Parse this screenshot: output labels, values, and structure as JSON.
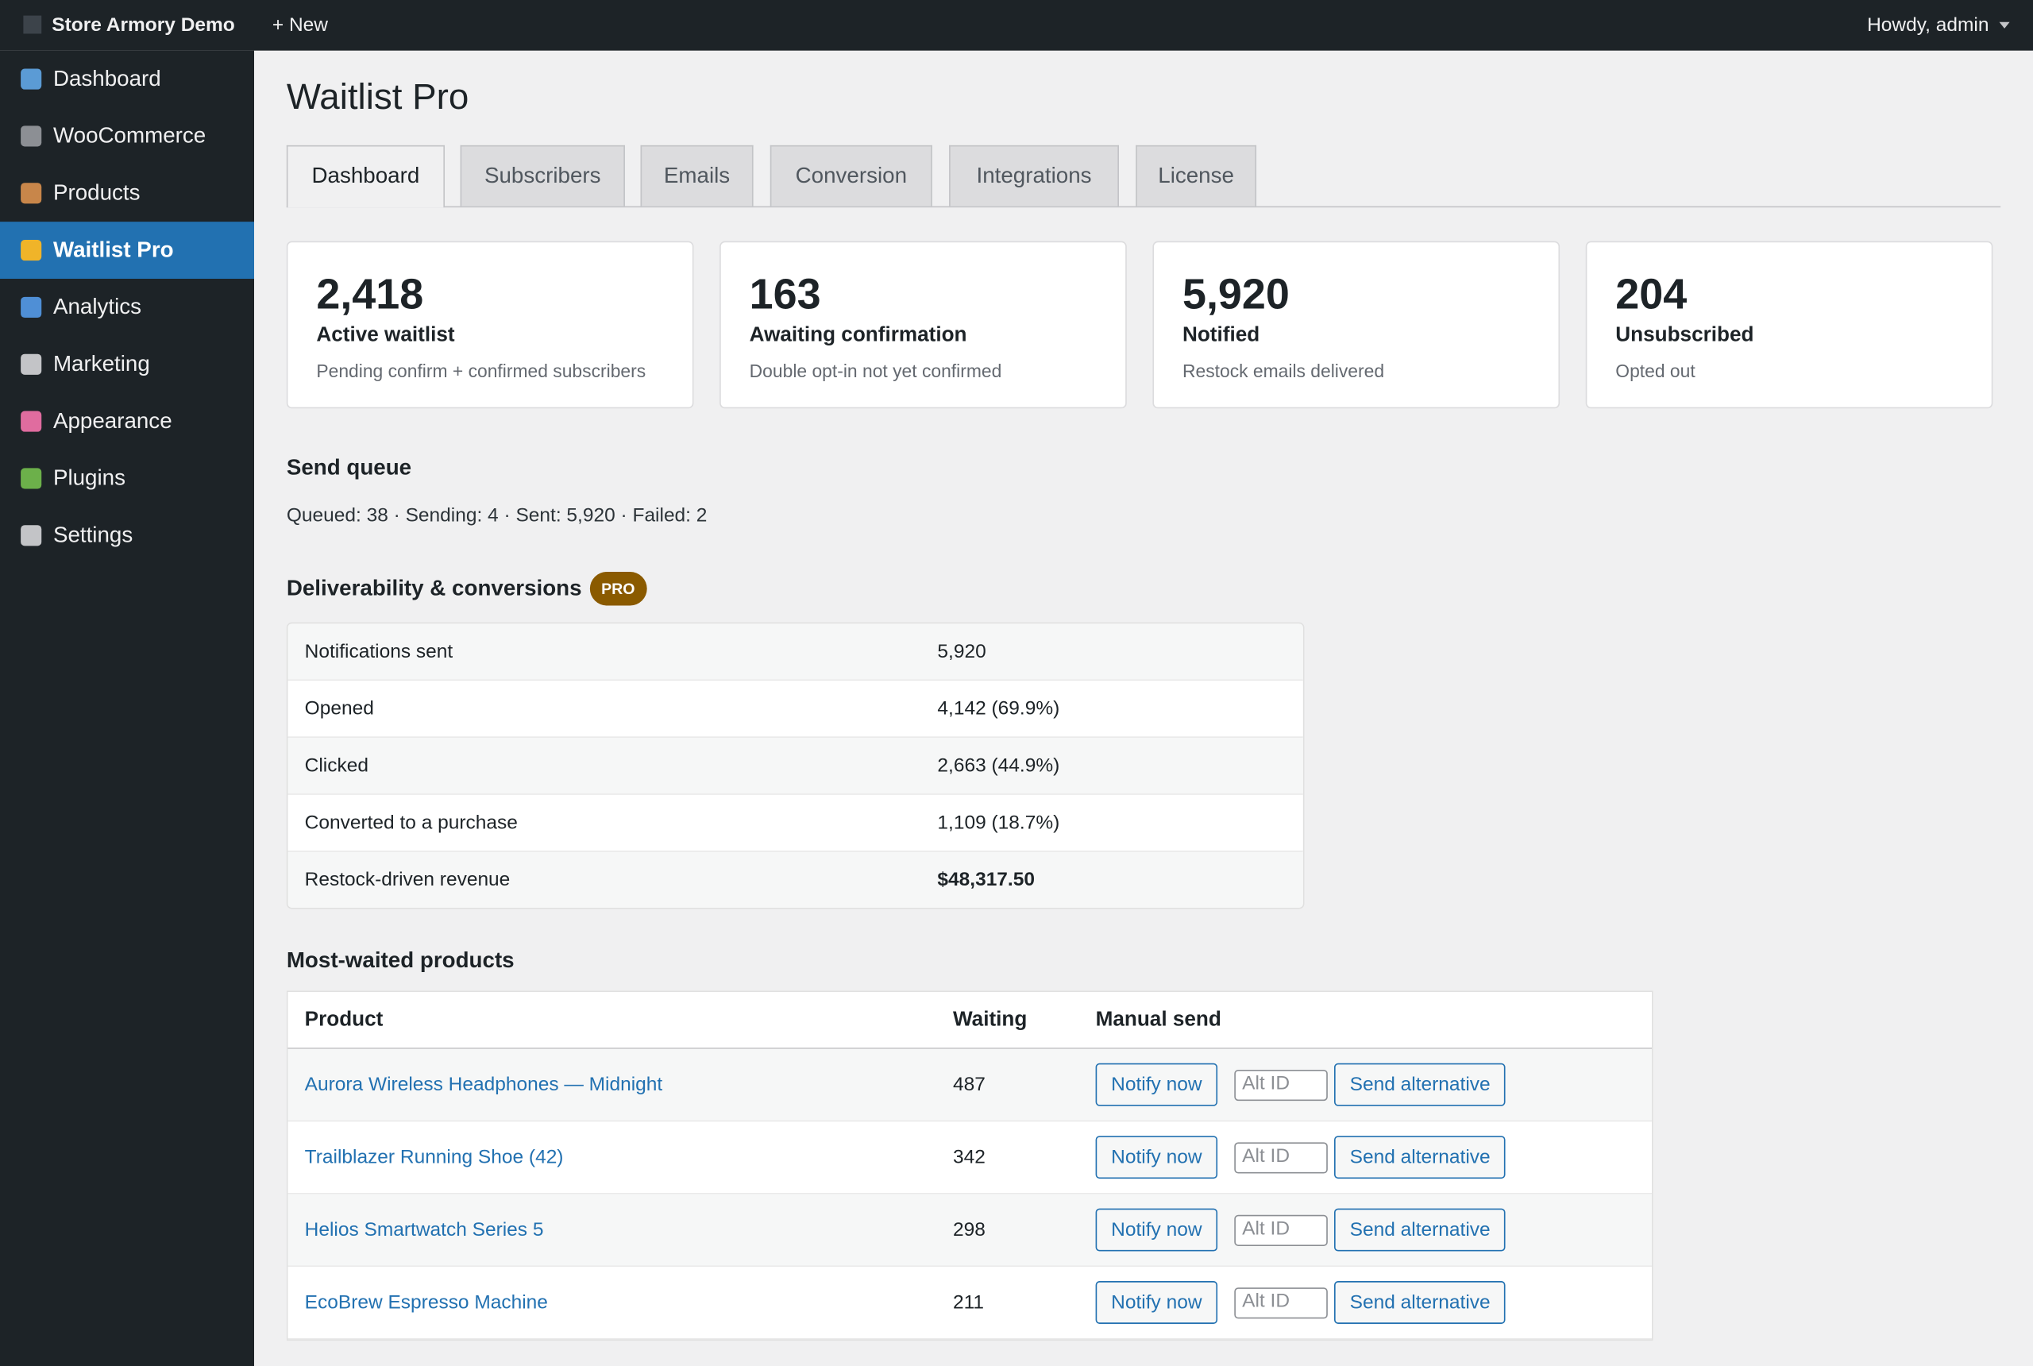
{
  "topbar": {
    "site": "Store Armory Demo",
    "new": "+ New",
    "user": "Howdy, admin"
  },
  "menu": [
    "Dashboard",
    "WooCommerce",
    "Products",
    "Waitlist Pro",
    "Analytics",
    "Marketing",
    "Appearance",
    "Plugins",
    "Settings"
  ],
  "page": {
    "title": "Waitlist Pro",
    "tabs": [
      "Dashboard",
      "Subscribers",
      "Emails",
      "Conversion",
      "Integrations",
      "License"
    ]
  },
  "cards": [
    {
      "value": "2,418",
      "label": "Active waitlist",
      "sub": "Pending confirm + confirmed subscribers"
    },
    {
      "value": "163",
      "label": "Awaiting confirmation",
      "sub": "Double opt-in not yet confirmed"
    },
    {
      "value": "5,920",
      "label": "Notified",
      "sub": "Restock emails delivered"
    },
    {
      "value": "204",
      "label": "Unsubscribed",
      "sub": "Opted out"
    }
  ],
  "queue": {
    "title": "Send queue",
    "text": "Queued: 38 · Sending: 4 · Sent: 5,920 · Failed: 2"
  },
  "deliverability": {
    "title": "Deliverability & conversions",
    "badge": "PRO",
    "rows": [
      [
        "Notifications sent",
        "5,920"
      ],
      [
        "Opened",
        "4,142 (69.9%)"
      ],
      [
        "Clicked",
        "2,663 (44.9%)"
      ],
      [
        "Converted to a purchase",
        "1,109 (18.7%)"
      ],
      [
        "Restock-driven revenue",
        "$48,317.50"
      ]
    ]
  },
  "products": {
    "title": "Most-waited products",
    "headers": [
      "Product",
      "Waiting",
      "Manual send"
    ],
    "notify": "Notify now",
    "alt_placeholder": "Alt ID",
    "send_alt": "Send alternative",
    "rows": [
      [
        "Aurora Wireless Headphones — Midnight",
        "487"
      ],
      [
        "Trailblazer Running Shoe (42)",
        "342"
      ],
      [
        "Helios Smartwatch Series 5",
        "298"
      ],
      [
        "EcoBrew Espresso Machine",
        "211"
      ]
    ]
  }
}
